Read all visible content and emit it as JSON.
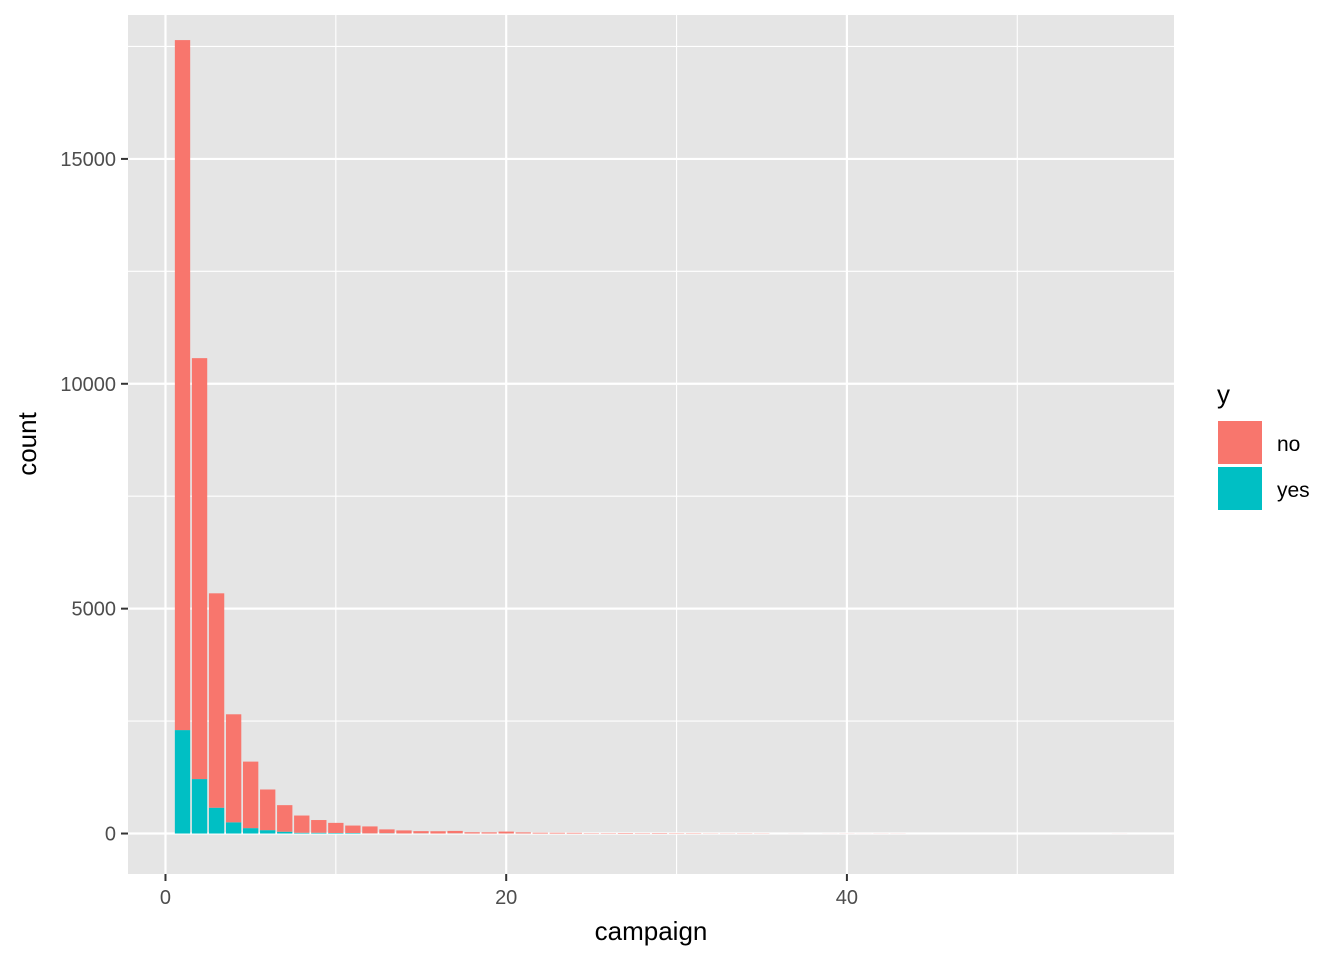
{
  "chart_data": {
    "type": "bar",
    "stacked": true,
    "xlabel": "campaign",
    "ylabel": "count",
    "xlim": [
      -2.2,
      59.2
    ],
    "ylim": [
      -900,
      18200
    ],
    "x_ticks": [
      0,
      20,
      40
    ],
    "y_ticks": [
      0,
      5000,
      10000,
      15000
    ],
    "grid": true,
    "panel_background": "#e5e5e5",
    "legend": {
      "title": "y",
      "position": "right",
      "entries": [
        {
          "label": "no",
          "color": "#f8766d"
        },
        {
          "label": "yes",
          "color": "#00bfc4"
        }
      ]
    },
    "x": [
      1,
      2,
      3,
      4,
      5,
      6,
      7,
      8,
      9,
      10,
      11,
      12,
      13,
      14,
      15,
      16,
      17,
      18,
      19,
      20,
      21,
      22,
      23,
      24,
      25,
      26,
      27,
      28,
      29,
      30,
      31,
      32,
      33,
      34,
      35,
      37,
      39,
      40,
      41,
      42,
      43,
      56
    ],
    "series": [
      {
        "name": "no",
        "color": "#f8766d",
        "values": [
          15342,
          9359,
          4767,
          2402,
          1479,
          904,
          591,
          383,
          283,
          225,
          165,
          155,
          86,
          68,
          49,
          51,
          54,
          28,
          26,
          42,
          24,
          17,
          16,
          15,
          8,
          8,
          11,
          8,
          10,
          7,
          7,
          4,
          4,
          5,
          4,
          1,
          1,
          2,
          1,
          2,
          2,
          1
        ]
      },
      {
        "name": "yes",
        "color": "#00bfc4",
        "values": [
          2300,
          1211,
          574,
          249,
          120,
          75,
          40,
          17,
          17,
          12,
          12,
          3,
          6,
          1,
          4,
          0,
          4,
          0,
          0,
          1,
          1,
          0,
          0,
          0,
          0,
          0,
          0,
          0,
          0,
          0,
          0,
          0,
          0,
          0,
          0,
          0,
          0,
          0,
          0,
          0,
          0,
          0
        ]
      }
    ]
  }
}
